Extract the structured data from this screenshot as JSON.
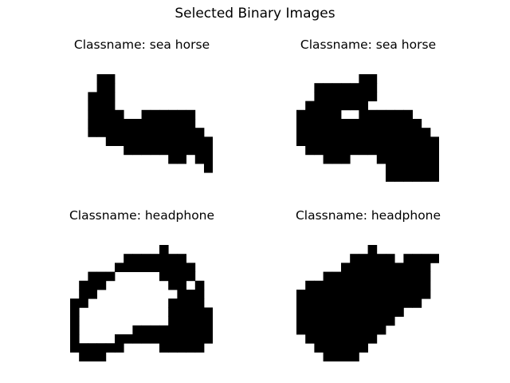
{
  "figure": {
    "title": "Selected Binary Images"
  },
  "panels": [
    {
      "title": "Classname: sea horse",
      "rows": [
        "...XX...........",
        "...XX...........",
        "..XXX...........",
        "..XXX...........",
        "..XXXX..XXXXXX..",
        "..XXXXXXXXXXXX..",
        "..XXXXXXXXXXXXX.",
        "....XXXXXXXXXXXX",
        "......XXXXXXXXXX",
        "...........XX.XX",
        "...............X",
        "................",
        "................"
      ]
    },
    {
      "title": "Classname: sea horse",
      "rows": [
        ".......XX.......",
        "..XXXXXXX.......",
        "..XXXXXXX.......",
        ".XXXXXXX........",
        "XXXXX..XXXXXX...",
        "XXXXXXXXXXXXXX..",
        "XXXXXXXXXXXXXXX.",
        "XXXXXXXXXXXXXXXX",
        ".XXXXXXXXXXXXXXX",
        "...XXX...XXXXXXX",
        "..........XXXXXX",
        "..........XXXXXX",
        "................"
      ]
    },
    {
      "title": "Classname: headphone",
      "rows": [
        "..........X.....",
        "......XXXXXXX...",
        ".....XXXXXXXXX..",
        "..XXX.....XXXX..",
        ".XXX.......XX.X.",
        ".XX.........XXX.",
        "XX.........XXXX.",
        "X..........XXXXX",
        "X..........XXXXX",
        "X......XXXXXXXXX",
        "X....XXXXXXXXXXX",
        "XXXXXX....XXXXX.",
        ".XXX............"
      ]
    },
    {
      "title": "Classname: headphone",
      "rows": [
        "........X.......",
        "......XXXXX.XXXX",
        ".....XXXXXXXXXX.",
        "...XXXXXXXXXXXX.",
        ".XXXXXXXXXXXXXX.",
        "XXXXXXXXXXXXXXX.",
        "XXXXXXXXXXXXXX..",
        "XXXXXXXXXXXX....",
        "XXXXXXXXXXX.....",
        "XXXXXXXXXX......",
        ".XXXXXXXX.......",
        "..XXXXXX........",
        "...XXXX........."
      ]
    }
  ]
}
